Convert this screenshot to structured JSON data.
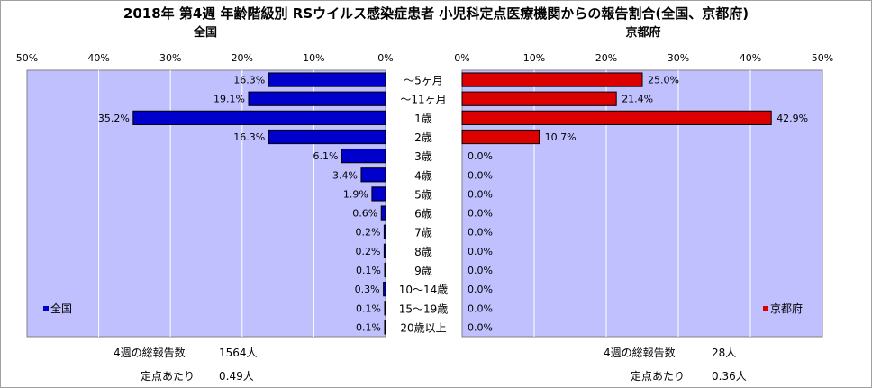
{
  "chart_data": {
    "type": "bar",
    "title": "2018年 第4週 年齢階級別 RSウイルス感染症患者 小児科定点医療機関からの報告割合(全国、京都府)",
    "categories": [
      "～5ヶ月",
      "～11ヶ月",
      "1歳",
      "2歳",
      "3歳",
      "4歳",
      "5歳",
      "6歳",
      "7歳",
      "8歳",
      "9歳",
      "10～14歳",
      "15～19歳",
      "20歳以上"
    ],
    "xlim": [
      0,
      50
    ],
    "ticks": [
      "0%",
      "10%",
      "20%",
      "30%",
      "40%",
      "50%"
    ],
    "grid": true,
    "panels": [
      {
        "name": "全国",
        "direction": "left",
        "color": "#0000cc",
        "values": [
          16.3,
          19.1,
          35.2,
          16.3,
          6.1,
          3.4,
          1.9,
          0.6,
          0.2,
          0.2,
          0.1,
          0.3,
          0.1,
          0.1
        ],
        "labels": [
          "16.3%",
          "19.1%",
          "35.2%",
          "16.3%",
          "6.1%",
          "3.4%",
          "1.9%",
          "0.6%",
          "0.2%",
          "0.2%",
          "0.1%",
          "0.3%",
          "0.1%",
          "0.1%"
        ],
        "legend": "全国",
        "legend_position": "bottom-left",
        "total_label": "4週の総報告数",
        "total_value": "1564人",
        "per_label": "定点あたり",
        "per_value": "0.49人"
      },
      {
        "name": "京都府",
        "direction": "right",
        "color": "#dd0000",
        "values": [
          25.0,
          21.4,
          42.9,
          10.7,
          0,
          0,
          0,
          0,
          0,
          0,
          0,
          0,
          0,
          0
        ],
        "labels": [
          "25.0%",
          "21.4%",
          "42.9%",
          "10.7%",
          "0.0%",
          "0.0%",
          "0.0%",
          "0.0%",
          "0.0%",
          "0.0%",
          "0.0%",
          "0.0%",
          "0.0%",
          "0.0%"
        ],
        "legend": "京都府",
        "legend_position": "bottom-right",
        "total_label": "4週の総報告数",
        "total_value": "28人",
        "per_label": "定点あたり",
        "per_value": "0.36人"
      }
    ]
  }
}
